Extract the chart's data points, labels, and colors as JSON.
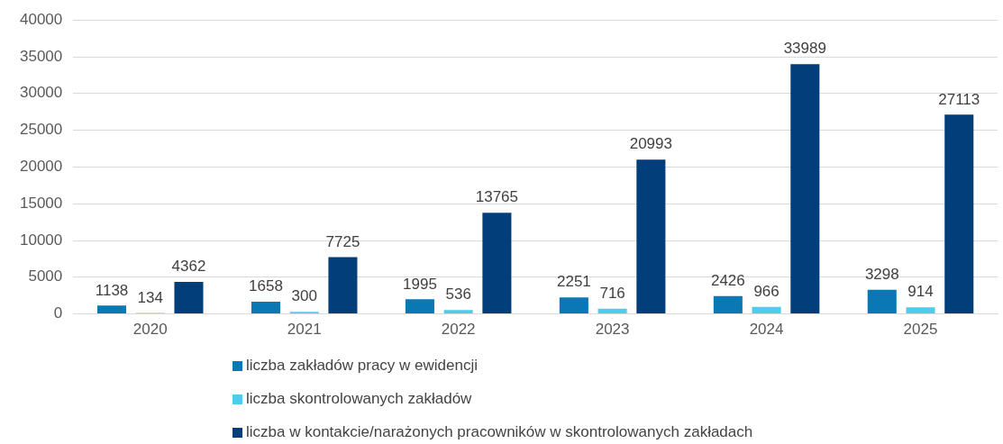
{
  "chart_data": {
    "type": "bar",
    "categories": [
      "2020",
      "2021",
      "2022",
      "2023",
      "2024",
      "2025"
    ],
    "series": [
      {
        "name": "liczba zakładów pracy w ewidencji",
        "color": "#0a78b4",
        "values": [
          1138,
          1658,
          1995,
          2251,
          2426,
          3298
        ]
      },
      {
        "name": "liczba skontrolowanych zakładów",
        "color": "#4fcbeb",
        "values": [
          134,
          300,
          536,
          716,
          966,
          914
        ]
      },
      {
        "name": "liczba w kontakcie/narażonych pracowników w skontrolowanych zakładach",
        "color": "#023e7a",
        "values": [
          4362,
          7725,
          13765,
          20993,
          33989,
          27113
        ]
      }
    ],
    "ylim": [
      0,
      40000
    ],
    "yticks": [
      0,
      5000,
      10000,
      15000,
      20000,
      25000,
      30000,
      35000,
      40000
    ],
    "grid": "y",
    "legend": "bottom",
    "data_labels": true
  }
}
